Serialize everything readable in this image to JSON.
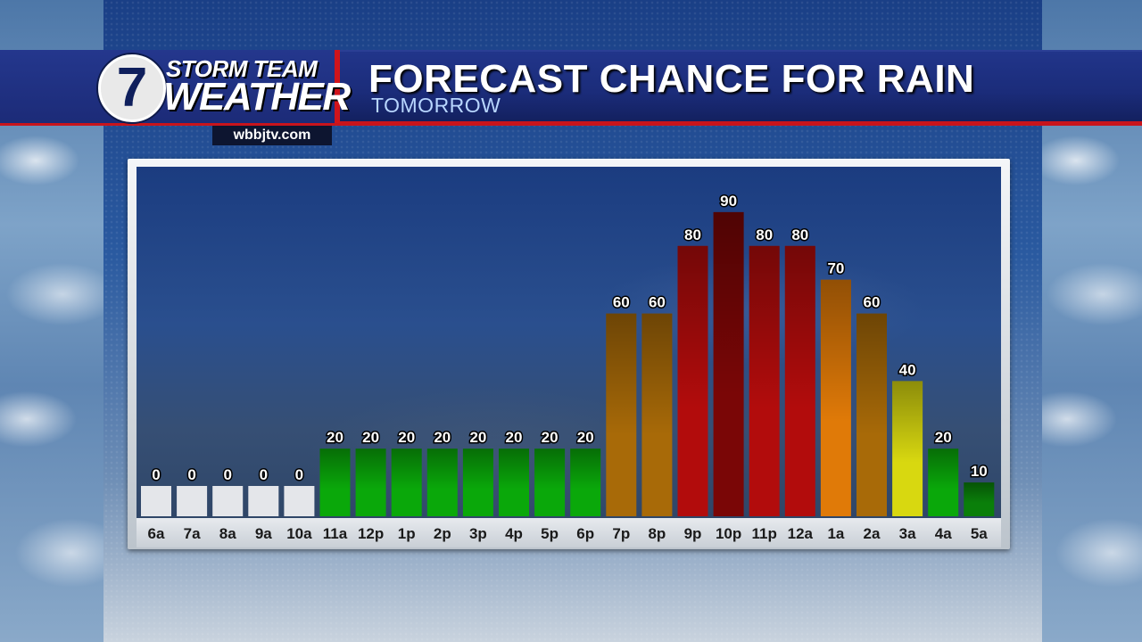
{
  "branding": {
    "logo_number": "7",
    "line1": "STORM TEAM",
    "line2": "WEATHER",
    "website": "wbbjtv.com"
  },
  "header": {
    "title": "FORECAST CHANCE FOR RAIN",
    "subtitle": "TOMORROW"
  },
  "colors": {
    "zero": "#e4e6ea",
    "green": "#0aa80a",
    "dark_green": "#0a7f0a",
    "amber": "#a86a08",
    "orange": "#e07a08",
    "red": "#b20c0c",
    "dark_red": "#7a0606",
    "yellow": "#d8d810"
  },
  "chart_data": {
    "type": "bar",
    "title": "FORECAST CHANCE FOR RAIN",
    "subtitle": "TOMORROW",
    "xlabel": "",
    "ylabel": "",
    "ylim": [
      0,
      100
    ],
    "grid": false,
    "categories": [
      "6a",
      "7a",
      "8a",
      "9a",
      "10a",
      "11a",
      "12p",
      "1p",
      "2p",
      "3p",
      "4p",
      "5p",
      "6p",
      "7p",
      "8p",
      "9p",
      "10p",
      "11p",
      "12a",
      "1a",
      "2a",
      "3a",
      "4a",
      "5a"
    ],
    "values": [
      0,
      0,
      0,
      0,
      0,
      20,
      20,
      20,
      20,
      20,
      20,
      20,
      20,
      60,
      60,
      80,
      90,
      80,
      80,
      70,
      60,
      40,
      20,
      10
    ],
    "bar_colors": [
      "zero",
      "zero",
      "zero",
      "zero",
      "zero",
      "green",
      "green",
      "green",
      "green",
      "green",
      "green",
      "green",
      "green",
      "amber",
      "amber",
      "red",
      "dark_red",
      "red",
      "red",
      "orange",
      "amber",
      "yellow",
      "green",
      "dark_green"
    ],
    "data_labels": [
      "0",
      "0",
      "0",
      "0",
      "0",
      "20",
      "20",
      "20",
      "20",
      "20",
      "20",
      "20",
      "20",
      "60",
      "60",
      "80",
      "90",
      "80",
      "80",
      "70",
      "60",
      "40",
      "20",
      "10"
    ]
  }
}
